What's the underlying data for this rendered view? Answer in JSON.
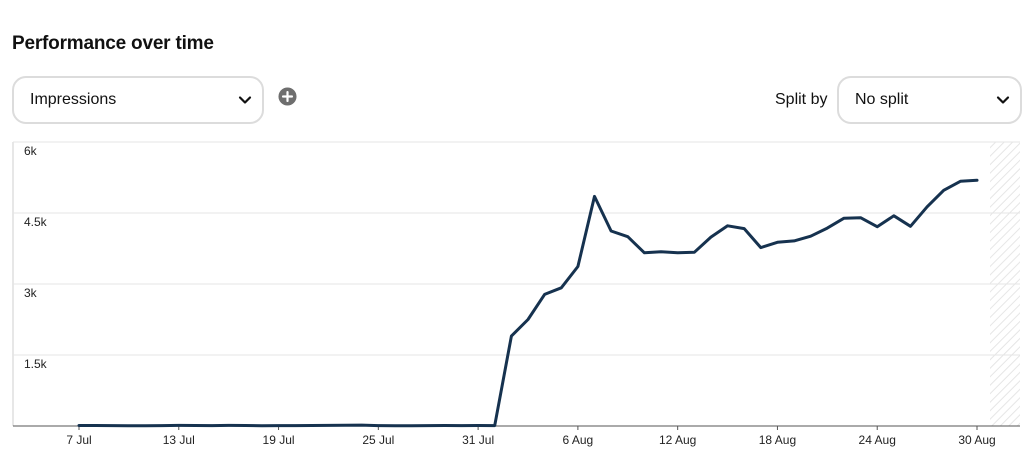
{
  "header": {
    "title": "Performance over time"
  },
  "controls": {
    "metric_value": "Impressions",
    "add_icon": "plus-circle-icon",
    "split_label": "Split by",
    "split_value": "No split",
    "chevron_icon": "chevron-down-icon"
  },
  "chart_data": {
    "type": "line",
    "title": "",
    "xlabel": "",
    "ylabel": "",
    "ylim": [
      0,
      6000
    ],
    "yticks": [
      1500,
      3000,
      4500,
      6000
    ],
    "ytick_labels": [
      "1.5k",
      "3k",
      "4.5k",
      "6k"
    ],
    "xtick_labels": [
      "7 Jul",
      "13 Jul",
      "19 Jul",
      "25 Jul",
      "31 Jul",
      "6 Aug",
      "12 Aug",
      "18 Aug",
      "24 Aug",
      "30 Aug"
    ],
    "grid": "horizontal",
    "line_color": "#16324f",
    "categories": [
      "7 Jul",
      "8 Jul",
      "9 Jul",
      "10 Jul",
      "11 Jul",
      "12 Jul",
      "13 Jul",
      "14 Jul",
      "15 Jul",
      "16 Jul",
      "17 Jul",
      "18 Jul",
      "19 Jul",
      "20 Jul",
      "21 Jul",
      "22 Jul",
      "23 Jul",
      "24 Jul",
      "25 Jul",
      "26 Jul",
      "27 Jul",
      "28 Jul",
      "29 Jul",
      "30 Jul",
      "31 Jul",
      "1 Aug",
      "2 Aug",
      "3 Aug",
      "4 Aug",
      "5 Aug",
      "6 Aug",
      "7 Aug",
      "8 Aug",
      "9 Aug",
      "10 Aug",
      "11 Aug",
      "12 Aug",
      "13 Aug",
      "14 Aug",
      "15 Aug",
      "16 Aug",
      "17 Aug",
      "18 Aug",
      "19 Aug",
      "20 Aug",
      "21 Aug",
      "22 Aug",
      "23 Aug",
      "24 Aug",
      "25 Aug",
      "26 Aug",
      "27 Aug",
      "28 Aug",
      "29 Aug",
      "30 Aug"
    ],
    "series": [
      {
        "values": [
          10,
          10,
          8,
          6,
          5,
          8,
          12,
          10,
          9,
          12,
          10,
          7,
          8,
          9,
          10,
          12,
          14,
          20,
          8,
          6,
          4,
          8,
          10,
          9,
          10,
          8,
          1900,
          2250,
          2780,
          2920,
          3370,
          4850,
          4120,
          4000,
          3660,
          3680,
          3660,
          3670,
          3990,
          4230,
          4170,
          3770,
          3880,
          3910,
          4010,
          4180,
          4390,
          4400,
          4210,
          4440,
          4220,
          4630,
          4980,
          5170,
          5190
        ]
      }
    ]
  }
}
